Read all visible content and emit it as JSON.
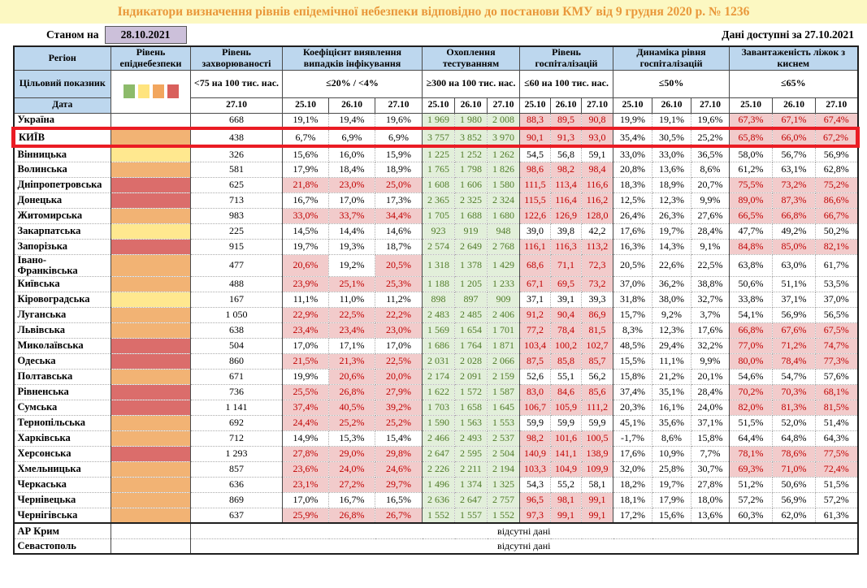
{
  "title": "Індикатори визначення рівнів епідемічної небезпеки відповідно до постанови КМУ від 9 грудня 2020 р. № 1236",
  "as_of_label": "Станом на",
  "as_of_date": "28.10.2021",
  "data_available": "Дані доступні за 27.10.2021",
  "colors": {
    "title_bg": "#FCF8C2",
    "title_text": "#E9983B",
    "header_blue": "#BDD7EE",
    "date_box_bg": "#CCC0DA",
    "highlight_border": "#EA1C24",
    "pink_bg": "#F2CBCB",
    "red_text": "#C00000",
    "green_bg": "#E2EFDA",
    "green_text": "#4F7A28",
    "levels": {
      "yellow": "#FFE88F",
      "orange": "#F2B374",
      "red": "#DB6D6B"
    },
    "legend": {
      "green": "#8DBB6B",
      "yellow": "#FFE47E",
      "orange": "#F2A65E",
      "red": "#D9605C"
    }
  },
  "table": {
    "header": {
      "region": "Регіон",
      "level": "Рівень епіднебезпеки",
      "incidence": "Рівень захворюваності",
      "coef": "Коефіцієнт виявлення випадків інфікування",
      "testing": "Охоплення тестуванням",
      "hosp": "Рівень госпіталізацій",
      "dyn": "Динаміка рівня госпіталізацій",
      "beds": "Завантаженість ліжок з киснем",
      "target_label": "Цільовий показник",
      "date_label": "Дата",
      "targets": {
        "incidence": "<75 на 100 тис. нас.",
        "coef": "≤20% / <4%",
        "testing": "≥300 на 100 тис. нас.",
        "hosp": "≤60 на 100 тис. нас.",
        "dyn": "≤50%",
        "beds": "≤65%"
      },
      "dates": {
        "single": "27.10",
        "d1": "25.10",
        "d2": "26.10",
        "d3": "27.10"
      }
    },
    "pink_rules": {
      "coef_gte": 20,
      "hosp_gt": 60,
      "beds_gt": 65
    },
    "no_data_label": "відсутні дані",
    "regions": [
      {
        "name": "Україна",
        "level": "none",
        "incidence": "668",
        "coef": [
          "19,1%",
          "19,4%",
          "19,6%"
        ],
        "test": [
          "1 969",
          "1 980",
          "2 008"
        ],
        "hosp": [
          "88,3",
          "89,5",
          "90,8"
        ],
        "dyn": [
          "19,9%",
          "19,1%",
          "19,6%"
        ],
        "beds": [
          "67,3%",
          "67,1%",
          "67,4%"
        ]
      },
      {
        "name": "КИЇВ",
        "level": "orange",
        "highlight": true,
        "incidence": "438",
        "coef": [
          "6,7%",
          "6,9%",
          "6,9%"
        ],
        "test": [
          "3 757",
          "3 852",
          "3 970"
        ],
        "hosp": [
          "90,1",
          "91,3",
          "93,0"
        ],
        "dyn": [
          "35,4%",
          "30,5%",
          "25,2%"
        ],
        "beds": [
          "65,8%",
          "66,0%",
          "67,2%"
        ]
      },
      {
        "name": "Вінницька",
        "level": "yellow",
        "incidence": "326",
        "coef": [
          "15,6%",
          "16,0%",
          "15,9%"
        ],
        "test": [
          "1 225",
          "1 252",
          "1 262"
        ],
        "hosp": [
          "54,5",
          "56,8",
          "59,1"
        ],
        "dyn": [
          "33,0%",
          "33,0%",
          "36,5%"
        ],
        "beds": [
          "58,0%",
          "56,7%",
          "56,9%"
        ]
      },
      {
        "name": "Волинська",
        "level": "orange",
        "incidence": "581",
        "coef": [
          "17,9%",
          "18,4%",
          "18,9%"
        ],
        "test": [
          "1 765",
          "1 798",
          "1 826"
        ],
        "hosp": [
          "98,6",
          "98,2",
          "98,4"
        ],
        "dyn": [
          "20,8%",
          "13,6%",
          "8,6%"
        ],
        "beds": [
          "61,2%",
          "63,1%",
          "62,8%"
        ]
      },
      {
        "name": "Дніпропетровська",
        "level": "red",
        "incidence": "625",
        "coef": [
          "21,8%",
          "23,0%",
          "25,0%"
        ],
        "test": [
          "1 608",
          "1 606",
          "1 580"
        ],
        "hosp": [
          "111,5",
          "113,4",
          "116,6"
        ],
        "dyn": [
          "18,3%",
          "18,9%",
          "20,7%"
        ],
        "beds": [
          "75,5%",
          "73,2%",
          "75,2%"
        ]
      },
      {
        "name": "Донецька",
        "level": "red",
        "incidence": "713",
        "coef": [
          "16,7%",
          "17,0%",
          "17,3%"
        ],
        "test": [
          "2 365",
          "2 325",
          "2 324"
        ],
        "hosp": [
          "115,5",
          "116,4",
          "116,2"
        ],
        "dyn": [
          "12,5%",
          "12,3%",
          "9,9%"
        ],
        "beds": [
          "89,0%",
          "87,3%",
          "86,6%"
        ]
      },
      {
        "name": "Житомирська",
        "level": "orange",
        "incidence": "983",
        "coef": [
          "33,0%",
          "33,7%",
          "34,4%"
        ],
        "test": [
          "1 705",
          "1 688",
          "1 680"
        ],
        "hosp": [
          "122,6",
          "126,9",
          "128,0"
        ],
        "dyn": [
          "26,4%",
          "26,3%",
          "27,6%"
        ],
        "beds": [
          "66,5%",
          "66,8%",
          "66,7%"
        ]
      },
      {
        "name": "Закарпатська",
        "level": "yellow",
        "incidence": "225",
        "coef": [
          "14,5%",
          "14,4%",
          "14,6%"
        ],
        "test": [
          "923",
          "919",
          "948"
        ],
        "hosp": [
          "39,0",
          "39,8",
          "42,2"
        ],
        "dyn": [
          "17,6%",
          "19,7%",
          "28,4%"
        ],
        "beds": [
          "47,7%",
          "49,2%",
          "50,2%"
        ]
      },
      {
        "name": "Запорізька",
        "level": "red",
        "incidence": "915",
        "coef": [
          "19,7%",
          "19,3%",
          "18,7%"
        ],
        "test": [
          "2 574",
          "2 649",
          "2 768"
        ],
        "hosp": [
          "116,1",
          "116,3",
          "113,2"
        ],
        "dyn": [
          "16,3%",
          "14,3%",
          "9,1%"
        ],
        "beds": [
          "84,8%",
          "85,0%",
          "82,1%"
        ]
      },
      {
        "name": "Івано-Франківська",
        "level": "orange",
        "wrap": true,
        "incidence": "477",
        "coef": [
          "20,6%",
          "19,2%",
          "20,5%"
        ],
        "test": [
          "1 318",
          "1 378",
          "1 429"
        ],
        "hosp": [
          "68,6",
          "71,1",
          "72,3"
        ],
        "dyn": [
          "20,5%",
          "22,6%",
          "22,5%"
        ],
        "beds": [
          "63,8%",
          "63,0%",
          "61,7%"
        ]
      },
      {
        "name": "Київська",
        "level": "orange",
        "incidence": "488",
        "coef": [
          "23,9%",
          "25,1%",
          "25,3%"
        ],
        "test": [
          "1 188",
          "1 205",
          "1 233"
        ],
        "hosp": [
          "67,1",
          "69,5",
          "73,2"
        ],
        "dyn": [
          "37,0%",
          "36,2%",
          "38,8%"
        ],
        "beds": [
          "50,6%",
          "51,1%",
          "53,5%"
        ]
      },
      {
        "name": "Кіровоградська",
        "level": "yellow",
        "incidence": "167",
        "coef": [
          "11,1%",
          "11,0%",
          "11,2%"
        ],
        "test": [
          "898",
          "897",
          "909"
        ],
        "hosp": [
          "37,1",
          "39,1",
          "39,3"
        ],
        "dyn": [
          "31,8%",
          "38,0%",
          "32,7%"
        ],
        "beds": [
          "33,8%",
          "37,1%",
          "37,0%"
        ]
      },
      {
        "name": "Луганська",
        "level": "orange",
        "incidence": "1 050",
        "coef": [
          "22,9%",
          "22,5%",
          "22,2%"
        ],
        "test": [
          "2 483",
          "2 485",
          "2 406"
        ],
        "hosp": [
          "91,2",
          "90,4",
          "86,9"
        ],
        "dyn": [
          "15,7%",
          "9,2%",
          "3,7%"
        ],
        "beds": [
          "54,1%",
          "56,9%",
          "56,5%"
        ]
      },
      {
        "name": "Львівська",
        "level": "orange",
        "incidence": "638",
        "coef": [
          "23,4%",
          "23,4%",
          "23,0%"
        ],
        "test": [
          "1 569",
          "1 654",
          "1 701"
        ],
        "hosp": [
          "77,2",
          "78,4",
          "81,5"
        ],
        "dyn": [
          "8,3%",
          "12,3%",
          "17,6%"
        ],
        "beds": [
          "66,8%",
          "67,6%",
          "67,5%"
        ]
      },
      {
        "name": "Миколаївська",
        "level": "red",
        "incidence": "504",
        "coef": [
          "17,0%",
          "17,1%",
          "17,0%"
        ],
        "test": [
          "1 686",
          "1 764",
          "1 871"
        ],
        "hosp": [
          "103,4",
          "100,2",
          "102,7"
        ],
        "dyn": [
          "48,5%",
          "29,4%",
          "32,2%"
        ],
        "beds": [
          "77,0%",
          "71,2%",
          "74,7%"
        ]
      },
      {
        "name": "Одеська",
        "level": "red",
        "incidence": "860",
        "coef": [
          "21,5%",
          "21,3%",
          "22,5%"
        ],
        "test": [
          "2 031",
          "2 028",
          "2 066"
        ],
        "hosp": [
          "87,5",
          "85,8",
          "85,7"
        ],
        "dyn": [
          "15,5%",
          "11,1%",
          "9,9%"
        ],
        "beds": [
          "80,0%",
          "78,4%",
          "77,3%"
        ]
      },
      {
        "name": "Полтавська",
        "level": "orange",
        "incidence": "671",
        "coef": [
          "19,9%",
          "20,6%",
          "20,0%"
        ],
        "test": [
          "2 174",
          "2 091",
          "2 159"
        ],
        "hosp": [
          "52,6",
          "55,1",
          "56,2"
        ],
        "dyn": [
          "15,8%",
          "21,2%",
          "20,1%"
        ],
        "beds": [
          "54,6%",
          "54,7%",
          "57,6%"
        ]
      },
      {
        "name": "Рівненська",
        "level": "red",
        "incidence": "736",
        "coef": [
          "25,5%",
          "26,8%",
          "27,9%"
        ],
        "test": [
          "1 622",
          "1 572",
          "1 587"
        ],
        "hosp": [
          "83,0",
          "84,6",
          "85,6"
        ],
        "dyn": [
          "37,4%",
          "35,1%",
          "28,4%"
        ],
        "beds": [
          "70,2%",
          "70,3%",
          "68,1%"
        ]
      },
      {
        "name": "Сумська",
        "level": "red",
        "incidence": "1 141",
        "coef": [
          "37,4%",
          "40,5%",
          "39,2%"
        ],
        "test": [
          "1 703",
          "1 658",
          "1 645"
        ],
        "hosp": [
          "106,7",
          "105,9",
          "111,2"
        ],
        "dyn": [
          "20,3%",
          "16,1%",
          "24,0%"
        ],
        "beds": [
          "82,0%",
          "81,3%",
          "81,5%"
        ]
      },
      {
        "name": "Тернопільська",
        "level": "orange",
        "incidence": "692",
        "coef": [
          "24,4%",
          "25,2%",
          "25,2%"
        ],
        "test": [
          "1 590",
          "1 563",
          "1 553"
        ],
        "hosp": [
          "59,9",
          "59,9",
          "59,9"
        ],
        "dyn": [
          "45,1%",
          "35,6%",
          "37,1%"
        ],
        "beds": [
          "51,5%",
          "52,0%",
          "51,4%"
        ]
      },
      {
        "name": "Харківська",
        "level": "orange",
        "incidence": "712",
        "coef": [
          "14,9%",
          "15,3%",
          "15,4%"
        ],
        "test": [
          "2 466",
          "2 493",
          "2 537"
        ],
        "hosp": [
          "98,2",
          "101,6",
          "100,5"
        ],
        "dyn": [
          "-1,7%",
          "8,6%",
          "15,8%"
        ],
        "beds": [
          "64,4%",
          "64,8%",
          "64,3%"
        ]
      },
      {
        "name": "Херсонська",
        "level": "red",
        "incidence": "1 293",
        "coef": [
          "27,8%",
          "29,0%",
          "29,8%"
        ],
        "test": [
          "2 647",
          "2 595",
          "2 504"
        ],
        "hosp": [
          "140,9",
          "141,1",
          "138,9"
        ],
        "dyn": [
          "17,6%",
          "10,9%",
          "7,7%"
        ],
        "beds": [
          "78,1%",
          "78,6%",
          "77,5%"
        ]
      },
      {
        "name": "Хмельницька",
        "level": "orange",
        "incidence": "857",
        "coef": [
          "23,6%",
          "24,0%",
          "24,6%"
        ],
        "test": [
          "2 226",
          "2 211",
          "2 194"
        ],
        "hosp": [
          "103,3",
          "104,9",
          "109,9"
        ],
        "dyn": [
          "32,0%",
          "25,8%",
          "30,7%"
        ],
        "beds": [
          "69,3%",
          "71,0%",
          "72,4%"
        ]
      },
      {
        "name": "Черкаська",
        "level": "orange",
        "incidence": "636",
        "coef": [
          "23,1%",
          "27,2%",
          "29,7%"
        ],
        "test": [
          "1 496",
          "1 374",
          "1 325"
        ],
        "hosp": [
          "54,3",
          "55,2",
          "58,1"
        ],
        "dyn": [
          "18,2%",
          "19,7%",
          "27,8%"
        ],
        "beds": [
          "51,2%",
          "50,6%",
          "51,5%"
        ]
      },
      {
        "name": "Чернівецька",
        "level": "orange",
        "incidence": "869",
        "coef": [
          "17,0%",
          "16,7%",
          "16,5%"
        ],
        "test": [
          "2 636",
          "2 647",
          "2 757"
        ],
        "hosp": [
          "96,5",
          "98,1",
          "99,1"
        ],
        "dyn": [
          "18,1%",
          "17,9%",
          "18,0%"
        ],
        "beds": [
          "57,2%",
          "56,9%",
          "57,2%"
        ]
      },
      {
        "name": "Чернігівська",
        "level": "orange",
        "incidence": "637",
        "coef": [
          "25,9%",
          "26,8%",
          "26,7%"
        ],
        "test": [
          "1 552",
          "1 557",
          "1 552"
        ],
        "hosp": [
          "97,3",
          "99,1",
          "99,1"
        ],
        "dyn": [
          "17,2%",
          "15,6%",
          "13,6%"
        ],
        "beds": [
          "60,3%",
          "62,0%",
          "61,3%"
        ]
      },
      {
        "name": "АР Крим",
        "level": "none",
        "no_data": true,
        "sep_top": true
      },
      {
        "name": "Севастополь",
        "level": "none",
        "no_data": true
      }
    ]
  }
}
